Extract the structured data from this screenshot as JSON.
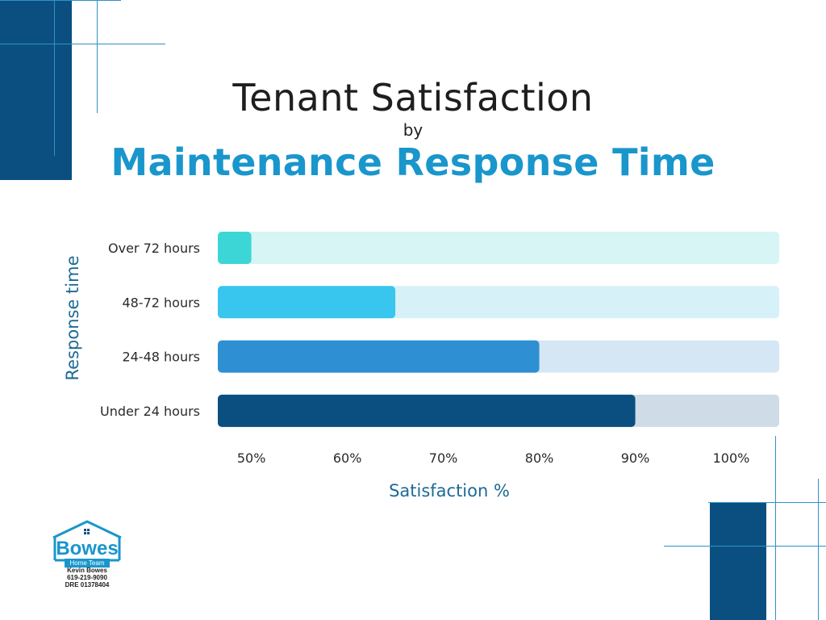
{
  "title": {
    "line1": "Tenant Satisfaction",
    "line2": "by",
    "line3": "Maintenance Response Time"
  },
  "colors": {
    "bar_over72": "#3dd6d6",
    "track_over72": "#d6f5f4",
    "bar_48_72": "#38c6ee",
    "track_48_72": "#d7f1f9",
    "bar_24_48": "#2e8fd3",
    "track_24_48": "#d5e7f5",
    "bar_under24": "#0a4f80",
    "track_under24": "#cfdbe6",
    "accent": "#1996cc",
    "deco_dark": "#0a4f80",
    "deco_line": "#2f93c7"
  },
  "chart_data": {
    "type": "bar",
    "orientation": "horizontal",
    "title": "Tenant Satisfaction by Maintenance Response Time",
    "categories": [
      "Over 72 hours",
      "48-72 hours",
      "24-48 hours",
      "Under 24 hours"
    ],
    "values": [
      50,
      65,
      80,
      90
    ],
    "xlabel": "Satisfaction %",
    "ylabel": "Response time",
    "xlim": [
      46.5,
      105
    ],
    "xticks": [
      50,
      60,
      70,
      80,
      90,
      100
    ],
    "xtick_labels": [
      "50%",
      "60%",
      "70%",
      "80%",
      "90%",
      "100%"
    ],
    "grid": false
  },
  "logo": {
    "name": "Bowes",
    "team": "Home Team",
    "person": "Kevin Bowes",
    "phone": "619-219-9090",
    "license": "DRE 01378404"
  }
}
